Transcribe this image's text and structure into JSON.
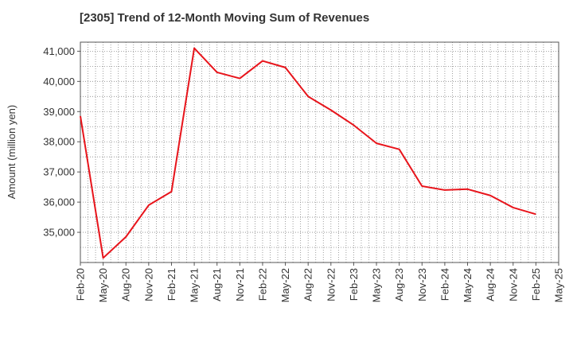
{
  "chart_data": {
    "type": "line",
    "title": "[2305]  Trend of 12-Month Moving Sum of Revenues",
    "xlabel": "",
    "ylabel": "Amount (million yen)",
    "ylim": [
      34000,
      41300
    ],
    "yticks": [
      35000,
      36000,
      37000,
      38000,
      39000,
      40000,
      41000
    ],
    "ytick_labels": [
      "35,000",
      "36,000",
      "37,000",
      "38,000",
      "39,000",
      "40,000",
      "41,000"
    ],
    "x_ticks": [
      "Feb-20",
      "May-20",
      "Aug-20",
      "Nov-20",
      "Feb-21",
      "May-21",
      "Aug-21",
      "Nov-21",
      "Feb-22",
      "May-22",
      "Aug-22",
      "Nov-22",
      "Feb-23",
      "May-23",
      "Aug-23",
      "Nov-23",
      "Feb-24",
      "May-24",
      "Aug-24",
      "Nov-24",
      "Feb-25",
      "May-25"
    ],
    "grid": true,
    "line_color": "#e8141b",
    "series": [
      {
        "x": [
          "Feb-20",
          "May-20",
          "Aug-20",
          "Nov-20",
          "Feb-21",
          "May-21",
          "Aug-21",
          "Nov-21",
          "Feb-22",
          "May-22",
          "Aug-22",
          "Nov-22",
          "Feb-23",
          "May-23",
          "Aug-23",
          "Nov-23",
          "Feb-24",
          "May-24",
          "Aug-24",
          "Nov-24",
          "Feb-25"
        ],
        "values": [
          38850,
          34150,
          34850,
          35900,
          36350,
          41100,
          40300,
          40100,
          40680,
          40460,
          39500,
          39050,
          38550,
          37950,
          37750,
          36530,
          36400,
          36430,
          36220,
          35820,
          35600
        ]
      }
    ]
  }
}
